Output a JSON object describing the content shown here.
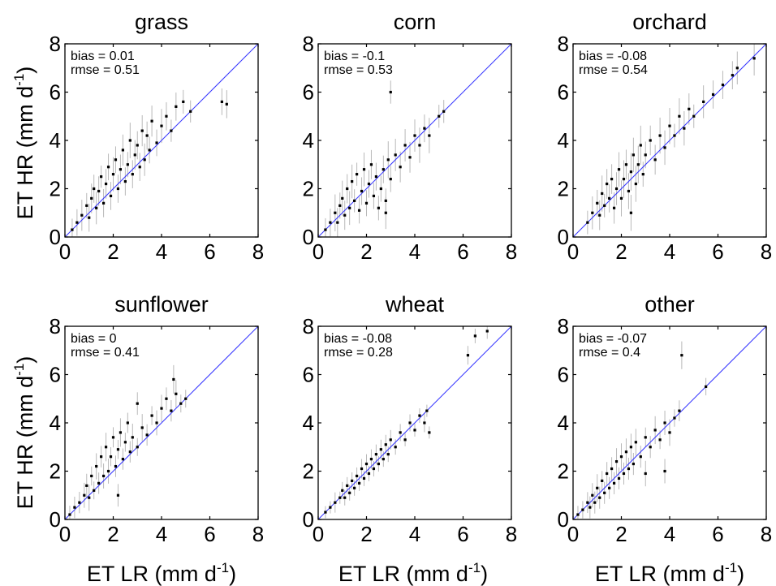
{
  "figure": {
    "ylabel": "ET HR (mm d-1)",
    "ylabel_main": "ET HR (mm d",
    "ylabel_sup": "-1",
    "ylabel_close": ")",
    "xlabel": "ET LR (mm d-1)",
    "xlabel_main": "ET LR (mm d",
    "xlabel_sup": "-1",
    "xlabel_close": ")",
    "line_color": "#3333ff",
    "point_color": "#000000",
    "errorbar_color": "#b8b8b8"
  },
  "chart_data": [
    {
      "type": "scatter",
      "title": "grass",
      "xlim": [
        0,
        8
      ],
      "ylim": [
        0,
        8
      ],
      "xticks": [
        "0",
        "2",
        "4",
        "6",
        "8"
      ],
      "yticks": [
        "0",
        "2",
        "4",
        "6",
        "8"
      ],
      "bias_label": "bias = 0.01",
      "rmse_label": "rmse = 0.51",
      "bias": 0.01,
      "rmse": 0.51,
      "reference_line": "1:1",
      "points": [
        [
          0.3,
          0.3
        ],
        [
          0.5,
          0.6
        ],
        [
          0.7,
          0.9
        ],
        [
          0.9,
          1.3
        ],
        [
          1.0,
          0.8
        ],
        [
          1.1,
          1.6
        ],
        [
          1.2,
          2.0
        ],
        [
          1.3,
          1.2
        ],
        [
          1.4,
          1.9
        ],
        [
          1.5,
          2.5
        ],
        [
          1.6,
          1.4
        ],
        [
          1.7,
          2.2
        ],
        [
          1.8,
          2.9
        ],
        [
          1.9,
          1.7
        ],
        [
          2.0,
          2.6
        ],
        [
          2.1,
          3.2
        ],
        [
          2.2,
          2.0
        ],
        [
          2.3,
          2.8
        ],
        [
          2.4,
          3.6
        ],
        [
          2.5,
          2.3
        ],
        [
          2.6,
          3.0
        ],
        [
          2.7,
          4.0
        ],
        [
          2.8,
          2.6
        ],
        [
          2.9,
          3.4
        ],
        [
          3.0,
          3.8
        ],
        [
          3.1,
          2.9
        ],
        [
          3.2,
          4.4
        ],
        [
          3.3,
          3.2
        ],
        [
          3.4,
          4.2
        ],
        [
          3.5,
          3.6
        ],
        [
          3.6,
          4.8
        ],
        [
          3.8,
          3.9
        ],
        [
          4.0,
          4.6
        ],
        [
          4.2,
          5.0
        ],
        [
          4.4,
          4.4
        ],
        [
          4.6,
          5.4
        ],
        [
          4.9,
          5.6
        ],
        [
          5.2,
          5.2
        ],
        [
          6.5,
          5.6
        ],
        [
          6.7,
          5.5
        ]
      ]
    },
    {
      "type": "scatter",
      "title": "corn",
      "xlim": [
        0,
        8
      ],
      "ylim": [
        0,
        8
      ],
      "xticks": [
        "0",
        "2",
        "4",
        "6",
        "8"
      ],
      "yticks": [
        "0",
        "2",
        "4",
        "6",
        "8"
      ],
      "bias_label": "bias = -0.1",
      "rmse_label": "rmse = 0.53",
      "bias": -0.1,
      "rmse": 0.53,
      "reference_line": "1:1",
      "points": [
        [
          0.3,
          0.3
        ],
        [
          0.5,
          0.6
        ],
        [
          0.7,
          1.0
        ],
        [
          0.8,
          0.6
        ],
        [
          0.9,
          1.3
        ],
        [
          1.0,
          1.6
        ],
        [
          1.1,
          0.9
        ],
        [
          1.2,
          2.0
        ],
        [
          1.3,
          1.2
        ],
        [
          1.4,
          2.3
        ],
        [
          1.5,
          1.5
        ],
        [
          1.6,
          2.6
        ],
        [
          1.7,
          1.1
        ],
        [
          1.8,
          1.9
        ],
        [
          1.9,
          2.8
        ],
        [
          2.0,
          1.4
        ],
        [
          2.1,
          2.2
        ],
        [
          2.2,
          3.0
        ],
        [
          2.3,
          1.7
        ],
        [
          2.4,
          2.5
        ],
        [
          2.5,
          1.2
        ],
        [
          2.6,
          2.0
        ],
        [
          2.7,
          2.8
        ],
        [
          2.8,
          1.5
        ],
        [
          2.9,
          3.2
        ],
        [
          3.0,
          2.4
        ],
        [
          3.2,
          3.4
        ],
        [
          3.4,
          2.9
        ],
        [
          3.6,
          3.8
        ],
        [
          3.8,
          3.3
        ],
        [
          4.0,
          4.2
        ],
        [
          4.2,
          3.8
        ],
        [
          4.4,
          4.5
        ],
        [
          4.6,
          4.2
        ],
        [
          5.0,
          5.0
        ],
        [
          5.2,
          5.2
        ],
        [
          3.0,
          6.0
        ],
        [
          2.8,
          1.0
        ]
      ]
    },
    {
      "type": "scatter",
      "title": "orchard",
      "xlim": [
        0,
        8
      ],
      "ylim": [
        0,
        8
      ],
      "xticks": [
        "0",
        "2",
        "4",
        "6",
        "8"
      ],
      "yticks": [
        "0",
        "2",
        "4",
        "6",
        "8"
      ],
      "bias_label": "bias = -0.08",
      "rmse_label": "rmse = 0.54",
      "bias": -0.08,
      "rmse": 0.54,
      "reference_line": "1:1",
      "points": [
        [
          0.6,
          0.6
        ],
        [
          0.8,
          1.0
        ],
        [
          1.0,
          1.4
        ],
        [
          1.1,
          0.9
        ],
        [
          1.2,
          1.8
        ],
        [
          1.3,
          1.3
        ],
        [
          1.4,
          2.2
        ],
        [
          1.5,
          1.6
        ],
        [
          1.6,
          2.4
        ],
        [
          1.7,
          1.2
        ],
        [
          1.8,
          2.0
        ],
        [
          1.9,
          2.8
        ],
        [
          2.0,
          1.6
        ],
        [
          2.1,
          2.4
        ],
        [
          2.2,
          3.0
        ],
        [
          2.3,
          1.9
        ],
        [
          2.4,
          2.7
        ],
        [
          2.5,
          3.4
        ],
        [
          2.6,
          2.2
        ],
        [
          2.7,
          3.0
        ],
        [
          2.8,
          3.8
        ],
        [
          2.9,
          2.6
        ],
        [
          3.0,
          3.4
        ],
        [
          3.2,
          4.0
        ],
        [
          3.4,
          3.2
        ],
        [
          3.6,
          4.2
        ],
        [
          3.8,
          3.7
        ],
        [
          4.0,
          4.6
        ],
        [
          4.2,
          4.2
        ],
        [
          4.4,
          5.0
        ],
        [
          4.6,
          4.5
        ],
        [
          4.8,
          5.3
        ],
        [
          5.0,
          5.0
        ],
        [
          5.4,
          5.6
        ],
        [
          5.8,
          5.9
        ],
        [
          6.2,
          6.3
        ],
        [
          6.6,
          6.7
        ],
        [
          7.5,
          7.4
        ],
        [
          6.8,
          7.0
        ],
        [
          2.4,
          1.0
        ]
      ]
    },
    {
      "type": "scatter",
      "title": "sunflower",
      "xlim": [
        0,
        8
      ],
      "ylim": [
        0,
        8
      ],
      "xticks": [
        "0",
        "2",
        "4",
        "6",
        "8"
      ],
      "yticks": [
        "0",
        "2",
        "4",
        "6",
        "8"
      ],
      "bias_label": "bias = 0",
      "rmse_label": "rmse = 0.41",
      "bias": 0,
      "rmse": 0.41,
      "reference_line": "1:1",
      "points": [
        [
          0.2,
          0.2
        ],
        [
          0.4,
          0.5
        ],
        [
          0.6,
          0.7
        ],
        [
          0.8,
          1.0
        ],
        [
          0.9,
          1.4
        ],
        [
          1.0,
          0.9
        ],
        [
          1.1,
          1.8
        ],
        [
          1.2,
          1.2
        ],
        [
          1.3,
          2.2
        ],
        [
          1.4,
          1.5
        ],
        [
          1.5,
          2.6
        ],
        [
          1.6,
          1.8
        ],
        [
          1.7,
          3.0
        ],
        [
          1.8,
          2.0
        ],
        [
          1.9,
          2.6
        ],
        [
          2.0,
          3.4
        ],
        [
          2.1,
          2.2
        ],
        [
          2.2,
          2.9
        ],
        [
          2.3,
          3.6
        ],
        [
          2.4,
          2.5
        ],
        [
          2.5,
          3.2
        ],
        [
          2.6,
          4.0
        ],
        [
          2.7,
          2.8
        ],
        [
          2.8,
          3.4
        ],
        [
          3.0,
          3.0
        ],
        [
          3.2,
          3.8
        ],
        [
          3.4,
          3.5
        ],
        [
          3.6,
          4.3
        ],
        [
          3.8,
          4.0
        ],
        [
          4.0,
          4.6
        ],
        [
          4.2,
          5.0
        ],
        [
          4.4,
          4.5
        ],
        [
          4.6,
          5.2
        ],
        [
          4.8,
          4.8
        ],
        [
          5.0,
          5.0
        ],
        [
          4.5,
          5.8
        ],
        [
          3.0,
          4.8
        ],
        [
          2.2,
          1.0
        ]
      ]
    },
    {
      "type": "scatter",
      "title": "wheat",
      "xlim": [
        0,
        8
      ],
      "ylim": [
        0,
        8
      ],
      "xticks": [
        "0",
        "2",
        "4",
        "6",
        "8"
      ],
      "yticks": [
        "0",
        "2",
        "4",
        "6",
        "8"
      ],
      "bias_label": "bias = -0.08",
      "rmse_label": "rmse = 0.28",
      "bias": -0.08,
      "rmse": 0.28,
      "reference_line": "1:1",
      "points": [
        [
          0.3,
          0.3
        ],
        [
          0.5,
          0.5
        ],
        [
          0.7,
          0.7
        ],
        [
          0.9,
          0.9
        ],
        [
          1.0,
          1.2
        ],
        [
          1.1,
          0.9
        ],
        [
          1.2,
          1.4
        ],
        [
          1.3,
          1.1
        ],
        [
          1.4,
          1.6
        ],
        [
          1.5,
          1.3
        ],
        [
          1.6,
          1.8
        ],
        [
          1.7,
          1.5
        ],
        [
          1.8,
          2.1
        ],
        [
          1.9,
          1.7
        ],
        [
          2.0,
          2.3
        ],
        [
          2.1,
          1.9
        ],
        [
          2.2,
          2.5
        ],
        [
          2.3,
          2.1
        ],
        [
          2.4,
          2.7
        ],
        [
          2.5,
          2.3
        ],
        [
          2.6,
          2.9
        ],
        [
          2.7,
          2.5
        ],
        [
          2.8,
          3.1
        ],
        [
          2.9,
          2.7
        ],
        [
          3.0,
          3.3
        ],
        [
          3.2,
          3.0
        ],
        [
          3.4,
          3.6
        ],
        [
          3.6,
          3.3
        ],
        [
          3.8,
          4.0
        ],
        [
          4.0,
          3.7
        ],
        [
          4.2,
          4.3
        ],
        [
          4.4,
          4.0
        ],
        [
          4.5,
          4.5
        ],
        [
          4.6,
          3.6
        ],
        [
          6.2,
          6.8
        ],
        [
          6.5,
          7.6
        ],
        [
          7.0,
          7.8
        ]
      ]
    },
    {
      "type": "scatter",
      "title": "other",
      "xlim": [
        0,
        8
      ],
      "ylim": [
        0,
        8
      ],
      "xticks": [
        "0",
        "2",
        "4",
        "6",
        "8"
      ],
      "yticks": [
        "0",
        "2",
        "4",
        "6",
        "8"
      ],
      "bias_label": "bias = -0.07",
      "rmse_label": "rmse = 0.4",
      "bias": -0.07,
      "rmse": 0.4,
      "reference_line": "1:1",
      "points": [
        [
          0.2,
          0.2
        ],
        [
          0.4,
          0.4
        ],
        [
          0.6,
          0.7
        ],
        [
          0.7,
          0.5
        ],
        [
          0.8,
          1.0
        ],
        [
          0.9,
          0.7
        ],
        [
          1.0,
          1.3
        ],
        [
          1.1,
          0.9
        ],
        [
          1.2,
          1.6
        ],
        [
          1.3,
          1.1
        ],
        [
          1.4,
          1.9
        ],
        [
          1.5,
          1.3
        ],
        [
          1.6,
          2.1
        ],
        [
          1.7,
          1.5
        ],
        [
          1.8,
          2.4
        ],
        [
          1.9,
          1.7
        ],
        [
          2.0,
          2.6
        ],
        [
          2.1,
          1.9
        ],
        [
          2.2,
          2.8
        ],
        [
          2.3,
          2.1
        ],
        [
          2.4,
          3.0
        ],
        [
          2.5,
          2.3
        ],
        [
          2.6,
          3.2
        ],
        [
          2.8,
          2.6
        ],
        [
          3.0,
          3.4
        ],
        [
          3.2,
          3.0
        ],
        [
          3.4,
          3.7
        ],
        [
          3.6,
          3.3
        ],
        [
          3.8,
          4.0
        ],
        [
          4.0,
          3.6
        ],
        [
          4.2,
          4.2
        ],
        [
          4.4,
          4.5
        ],
        [
          3.0,
          1.9
        ],
        [
          3.8,
          2.0
        ],
        [
          4.5,
          6.8
        ],
        [
          5.5,
          5.5
        ]
      ]
    }
  ]
}
